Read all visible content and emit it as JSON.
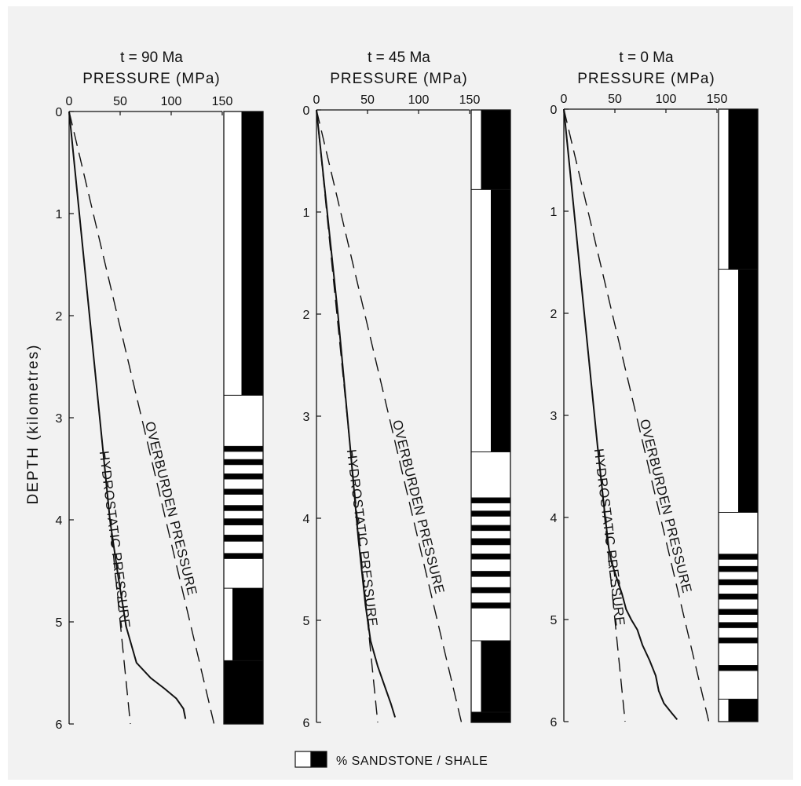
{
  "chart_data": [
    {
      "type": "line",
      "title": "t = 90 Ma",
      "subtitle": "PRESSURE (MPa)",
      "ylabel": "DEPTH (kilometres)",
      "xlim": [
        0,
        150
      ],
      "ylim": [
        0,
        6
      ],
      "x_ticks": [
        "0",
        "50",
        "100",
        "150"
      ],
      "y_ticks": [
        "0",
        "1",
        "2",
        "3",
        "4",
        "5",
        "6"
      ],
      "series": [
        {
          "name": "HYDROSTATIC PRESSURE",
          "style": "dashed",
          "points": [
            [
              0,
              0
            ],
            [
              60,
              6
            ]
          ]
        },
        {
          "name": "OVERBURDEN PRESSURE",
          "style": "dashed",
          "points": [
            [
              0,
              0
            ],
            [
              142,
              6
            ]
          ]
        },
        {
          "name": "",
          "style": "solid",
          "points": [
            [
              0,
              0
            ],
            [
              20,
              2
            ],
            [
              33,
              3.3
            ],
            [
              40,
              4.0
            ],
            [
              48,
              4.55
            ],
            [
              56,
              5.05
            ],
            [
              66,
              5.4
            ],
            [
              80,
              5.55
            ],
            [
              93,
              5.65
            ],
            [
              105,
              5.75
            ],
            [
              112,
              5.85
            ],
            [
              114,
              5.95
            ]
          ]
        }
      ],
      "lithology": [
        {
          "top": 0.0,
          "bottom": 2.78,
          "sand": 0.45
        },
        {
          "top": 2.78,
          "bottom": 3.28,
          "sand": 1.0
        },
        {
          "top": 3.28,
          "bottom": 3.33,
          "sand": 0.0
        },
        {
          "top": 3.33,
          "bottom": 3.41,
          "sand": 1.0
        },
        {
          "top": 3.41,
          "bottom": 3.46,
          "sand": 0.0
        },
        {
          "top": 3.46,
          "bottom": 3.55,
          "sand": 1.0
        },
        {
          "top": 3.55,
          "bottom": 3.6,
          "sand": 0.0
        },
        {
          "top": 3.6,
          "bottom": 3.7,
          "sand": 1.0
        },
        {
          "top": 3.7,
          "bottom": 3.75,
          "sand": 0.0
        },
        {
          "top": 3.75,
          "bottom": 3.86,
          "sand": 1.0
        },
        {
          "top": 3.86,
          "bottom": 3.91,
          "sand": 0.0
        },
        {
          "top": 3.91,
          "bottom": 3.99,
          "sand": 1.0
        },
        {
          "top": 3.99,
          "bottom": 4.05,
          "sand": 0.0
        },
        {
          "top": 4.05,
          "bottom": 4.15,
          "sand": 1.0
        },
        {
          "top": 4.15,
          "bottom": 4.21,
          "sand": 0.0
        },
        {
          "top": 4.21,
          "bottom": 4.33,
          "sand": 1.0
        },
        {
          "top": 4.33,
          "bottom": 4.38,
          "sand": 0.0
        },
        {
          "top": 4.38,
          "bottom": 4.67,
          "sand": 1.0
        },
        {
          "top": 4.67,
          "bottom": 5.38,
          "sand": 0.22
        },
        {
          "top": 5.38,
          "bottom": 6.0,
          "sand": 0.0
        }
      ]
    },
    {
      "type": "line",
      "title": "t = 45 Ma",
      "subtitle": "PRESSURE (MPa)",
      "xlim": [
        0,
        150
      ],
      "ylim": [
        0,
        6
      ],
      "x_ticks": [
        "0",
        "50",
        "100",
        "150"
      ],
      "y_ticks": [
        "0",
        "1",
        "2",
        "3",
        "4",
        "5",
        "6"
      ],
      "series": [
        {
          "name": "HYDROSTATIC PRESSURE",
          "style": "dashed",
          "points": [
            [
              0,
              0
            ],
            [
              60,
              6
            ]
          ]
        },
        {
          "name": "OVERBURDEN PRESSURE",
          "style": "dashed",
          "points": [
            [
              0,
              0
            ],
            [
              142,
              6
            ]
          ]
        },
        {
          "name": "",
          "style": "solid",
          "points": [
            [
              0,
              0
            ],
            [
              21,
              2
            ],
            [
              33,
              3.3
            ],
            [
              41,
              4.2
            ],
            [
              48,
              4.85
            ],
            [
              53,
              5.2
            ],
            [
              60,
              5.45
            ],
            [
              67,
              5.65
            ],
            [
              73,
              5.82
            ],
            [
              77,
              5.95
            ]
          ]
        }
      ],
      "lithology": [
        {
          "top": 0.0,
          "bottom": 0.78,
          "sand": 0.25
        },
        {
          "top": 0.78,
          "bottom": 3.35,
          "sand": 0.5
        },
        {
          "top": 3.35,
          "bottom": 3.8,
          "sand": 1.0
        },
        {
          "top": 3.8,
          "bottom": 3.85,
          "sand": 0.0
        },
        {
          "top": 3.85,
          "bottom": 3.93,
          "sand": 1.0
        },
        {
          "top": 3.93,
          "bottom": 3.98,
          "sand": 0.0
        },
        {
          "top": 3.98,
          "bottom": 4.07,
          "sand": 1.0
        },
        {
          "top": 4.07,
          "bottom": 4.12,
          "sand": 0.0
        },
        {
          "top": 4.12,
          "bottom": 4.2,
          "sand": 1.0
        },
        {
          "top": 4.2,
          "bottom": 4.26,
          "sand": 0.0
        },
        {
          "top": 4.26,
          "bottom": 4.35,
          "sand": 1.0
        },
        {
          "top": 4.35,
          "bottom": 4.4,
          "sand": 0.0
        },
        {
          "top": 4.4,
          "bottom": 4.52,
          "sand": 1.0
        },
        {
          "top": 4.52,
          "bottom": 4.57,
          "sand": 0.0
        },
        {
          "top": 4.57,
          "bottom": 4.68,
          "sand": 1.0
        },
        {
          "top": 4.68,
          "bottom": 4.73,
          "sand": 0.0
        },
        {
          "top": 4.73,
          "bottom": 4.83,
          "sand": 1.0
        },
        {
          "top": 4.83,
          "bottom": 4.88,
          "sand": 0.0
        },
        {
          "top": 4.88,
          "bottom": 5.2,
          "sand": 1.0
        },
        {
          "top": 5.2,
          "bottom": 5.9,
          "sand": 0.25
        },
        {
          "top": 5.9,
          "bottom": 6.0,
          "sand": 0.0
        }
      ]
    },
    {
      "type": "line",
      "title": "t = 0 Ma",
      "subtitle": "PRESSURE (MPa)",
      "xlim": [
        0,
        150
      ],
      "ylim": [
        0,
        6
      ],
      "x_ticks": [
        "0",
        "50",
        "100",
        "150"
      ],
      "y_ticks": [
        "0",
        "1",
        "2",
        "3",
        "4",
        "5",
        "6"
      ],
      "series": [
        {
          "name": "HYDROSTATIC PRESSURE",
          "style": "dashed",
          "points": [
            [
              0,
              0
            ],
            [
              60,
              6
            ]
          ]
        },
        {
          "name": "OVERBURDEN PRESSURE",
          "style": "dashed",
          "points": [
            [
              0,
              0
            ],
            [
              142,
              6
            ]
          ]
        },
        {
          "name": "",
          "style": "solid",
          "points": [
            [
              0,
              0
            ],
            [
              20,
              2
            ],
            [
              33,
              3.3
            ],
            [
              40,
              3.95
            ],
            [
              44,
              4.3
            ],
            [
              47,
              4.45
            ],
            [
              52,
              4.6
            ],
            [
              57,
              4.75
            ],
            [
              61,
              4.9
            ],
            [
              66,
              5.0
            ],
            [
              72,
              5.1
            ],
            [
              77,
              5.25
            ],
            [
              84,
              5.4
            ],
            [
              90,
              5.55
            ],
            [
              93,
              5.7
            ],
            [
              98,
              5.82
            ],
            [
              106,
              5.92
            ],
            [
              111,
              5.98
            ]
          ]
        }
      ],
      "lithology": [
        {
          "top": 0.0,
          "bottom": 1.57,
          "sand": 0.25
        },
        {
          "top": 1.57,
          "bottom": 3.95,
          "sand": 0.5
        },
        {
          "top": 3.95,
          "bottom": 4.36,
          "sand": 1.0
        },
        {
          "top": 4.36,
          "bottom": 4.41,
          "sand": 0.0
        },
        {
          "top": 4.41,
          "bottom": 4.48,
          "sand": 1.0
        },
        {
          "top": 4.48,
          "bottom": 4.53,
          "sand": 0.0
        },
        {
          "top": 4.53,
          "bottom": 4.61,
          "sand": 1.0
        },
        {
          "top": 4.61,
          "bottom": 4.66,
          "sand": 0.0
        },
        {
          "top": 4.66,
          "bottom": 4.75,
          "sand": 1.0
        },
        {
          "top": 4.75,
          "bottom": 4.8,
          "sand": 0.0
        },
        {
          "top": 4.8,
          "bottom": 4.9,
          "sand": 1.0
        },
        {
          "top": 4.9,
          "bottom": 4.95,
          "sand": 0.0
        },
        {
          "top": 4.95,
          "bottom": 5.03,
          "sand": 1.0
        },
        {
          "top": 5.03,
          "bottom": 5.08,
          "sand": 0.0
        },
        {
          "top": 5.08,
          "bottom": 5.18,
          "sand": 1.0
        },
        {
          "top": 5.18,
          "bottom": 5.23,
          "sand": 0.0
        },
        {
          "top": 5.23,
          "bottom": 5.45,
          "sand": 1.0
        },
        {
          "top": 5.45,
          "bottom": 5.5,
          "sand": 0.0
        },
        {
          "top": 5.5,
          "bottom": 5.78,
          "sand": 1.0
        },
        {
          "top": 5.78,
          "bottom": 6.0,
          "sand": 0.25
        }
      ]
    }
  ],
  "legend": {
    "label": "% SANDSTONE / SHALE"
  },
  "annotations": {
    "hydrostatic": "HYDROSTATIC PRESSURE",
    "overburden": "OVERBURDEN PRESSURE"
  },
  "colors": {
    "background": "#f2f2f2",
    "ink": "#111111",
    "sand": "#ffffff",
    "shale": "#000000"
  }
}
